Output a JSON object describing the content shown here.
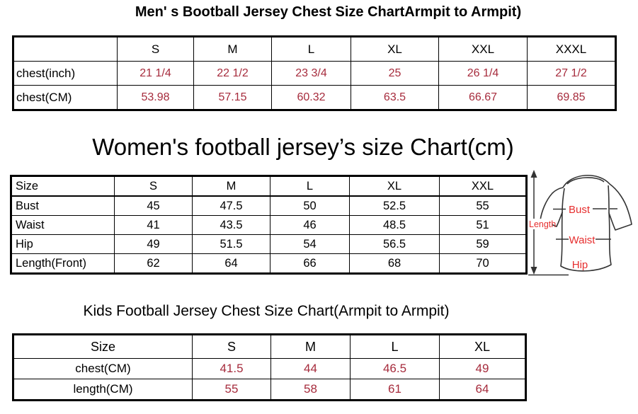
{
  "page": {
    "background": "#ffffff"
  },
  "colors": {
    "table_value_red": "#a62b3c",
    "diagram_label_red": "#e62e2e",
    "border_black": "#000000"
  },
  "titles": {
    "men": "Men' s Bootball Jersey Chest Size ChartArmpit to Armpit)",
    "women": "Women's football jersey’s size Chart(cm)",
    "kids": "Kids Football Jersey Chest Size Chart(Armpit to Armpit)"
  },
  "tables": [
    {
      "name": "mens-chest-size",
      "header": [
        "",
        "S",
        "M",
        "L",
        "XL",
        "XXL",
        "XXXL"
      ],
      "rows": [
        {
          "label": "chest(inch)",
          "value_color": "red",
          "values": [
            "21 1/4",
            "22 1/2",
            "23 3/4",
            "25",
            "26 1/4",
            "27 1/2"
          ]
        },
        {
          "label": "chest(CM)",
          "value_color": "red",
          "values": [
            "53.98",
            "57.15",
            "60.32",
            "63.5",
            "66.67",
            "69.85"
          ]
        }
      ]
    },
    {
      "name": "womens-size",
      "header": [
        "Size",
        "S",
        "M",
        "L",
        "XL",
        "XXL"
      ],
      "rows": [
        {
          "label": "Bust",
          "value_color": "black",
          "values": [
            "45",
            "47.5",
            "50",
            "52.5",
            "55"
          ]
        },
        {
          "label": "Waist",
          "value_color": "black",
          "values": [
            "41",
            "43.5",
            "46",
            "48.5",
            "51"
          ]
        },
        {
          "label": "Hip",
          "value_color": "black",
          "values": [
            "49",
            "51.5",
            "54",
            "56.5",
            "59"
          ]
        },
        {
          "label": "Length(Front)",
          "value_color": "black",
          "values": [
            "62",
            "64",
            "66",
            "68",
            "70"
          ]
        }
      ]
    },
    {
      "name": "kids-chest-size",
      "header": [
        "Size",
        "S",
        "M",
        "L",
        "XL"
      ],
      "rows": [
        {
          "label": "chest(CM)",
          "value_color": "red",
          "values": [
            "41.5",
            "44",
            "46.5",
            "49"
          ]
        },
        {
          "label": "length(CM)",
          "value_color": "red",
          "values": [
            "55",
            "58",
            "61",
            "64"
          ]
        }
      ]
    }
  ],
  "diagram": {
    "length_label": "Length",
    "bust_label": "Bust",
    "waist_label": "Waist",
    "hip_label": "Hip"
  }
}
